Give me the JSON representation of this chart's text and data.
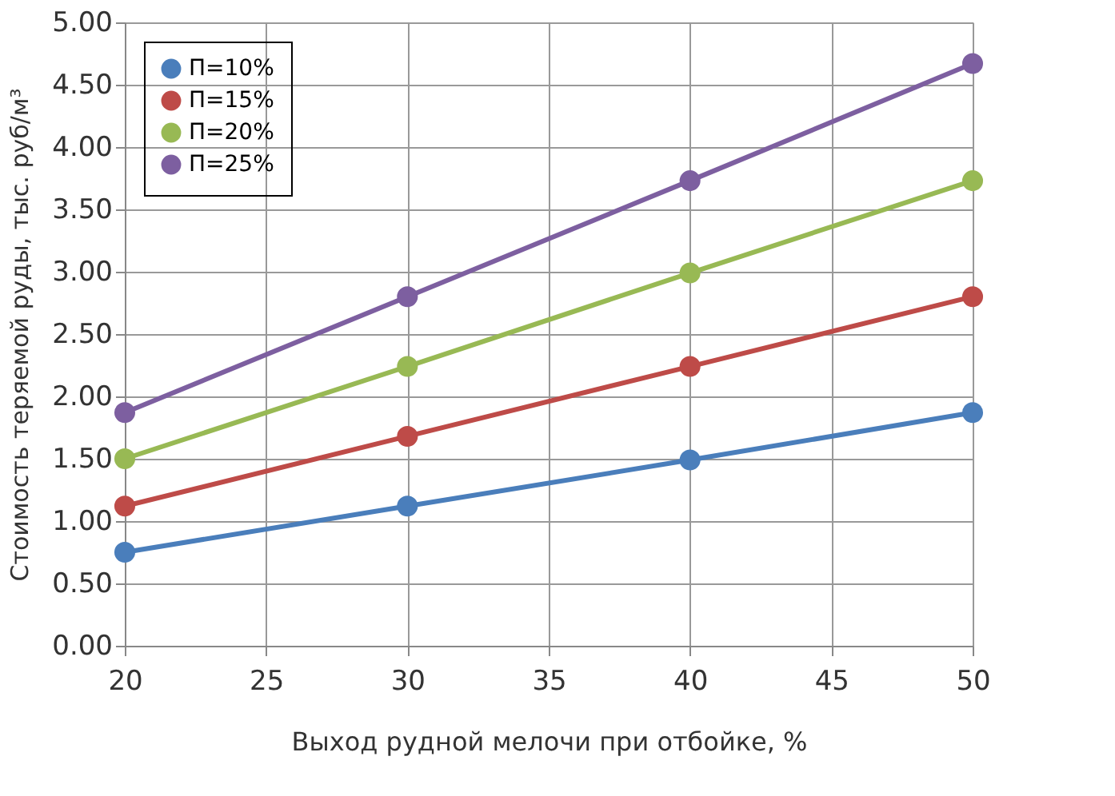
{
  "chart_data": {
    "type": "line",
    "xlabel": "Выход рудной мелочи при отбойке, %",
    "ylabel": "Стоимость теряемой руды,  тыс. руб/м³",
    "x": [
      20,
      30,
      40,
      50
    ],
    "series": [
      {
        "name": "П=10%",
        "color": "#4a7ebb",
        "values": [
          0.75,
          1.12,
          1.49,
          1.87
        ]
      },
      {
        "name": "П=15%",
        "color": "#be4b48",
        "values": [
          1.12,
          1.68,
          2.24,
          2.8
        ]
      },
      {
        "name": "П=20%",
        "color": "#98b954",
        "values": [
          1.5,
          2.24,
          2.99,
          3.73
        ]
      },
      {
        "name": "П=25%",
        "color": "#7d5fa0",
        "values": [
          1.87,
          2.8,
          3.73,
          4.67
        ]
      }
    ],
    "xlim": [
      20,
      50
    ],
    "xticks": [
      20,
      25,
      30,
      35,
      40,
      45,
      50
    ],
    "ylim": [
      0,
      5
    ],
    "yticks": [
      {
        "value": 0,
        "label": "0.00"
      },
      {
        "value": 0.5,
        "label": "0.50"
      },
      {
        "value": 1,
        "label": "1.00"
      },
      {
        "value": 1.5,
        "label": "1.50"
      },
      {
        "value": 2,
        "label": "2.00"
      },
      {
        "value": 2.5,
        "label": "2.50"
      },
      {
        "value": 3,
        "label": "3.00"
      },
      {
        "value": 3.5,
        "label": "3.50"
      },
      {
        "value": 4,
        "label": "4.00"
      },
      {
        "value": 4.5,
        "label": "4.50"
      },
      {
        "value": 5,
        "label": "5.00"
      }
    ],
    "grid": true,
    "legend": "top left",
    "marker": "circle",
    "line_style": "solid"
  }
}
